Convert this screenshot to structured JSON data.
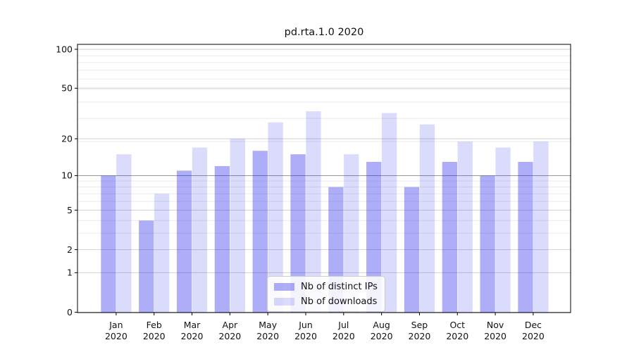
{
  "title": "pd.rta.1.0 2020",
  "chart_data": {
    "type": "bar",
    "title": "pd.rta.1.0 2020",
    "categories": [
      "Jan",
      "Feb",
      "Mar",
      "Apr",
      "May",
      "Jun",
      "Jul",
      "Aug",
      "Sep",
      "Oct",
      "Nov",
      "Dec"
    ],
    "year_label": "2020",
    "series": [
      {
        "name": "Nb of distinct IPs",
        "color": "rgba(30,30,235,0.36)",
        "values": [
          10,
          4,
          11,
          12,
          16,
          15,
          8,
          13,
          8,
          13,
          10,
          13
        ]
      },
      {
        "name": "Nb of downloads",
        "color": "rgba(30,30,235,0.16)",
        "values": [
          15,
          7,
          17,
          20,
          27,
          33,
          15,
          32,
          26,
          19,
          17,
          19
        ]
      }
    ],
    "xlabel": "",
    "ylabel": "",
    "yscale": "log1p",
    "ylim": [
      0,
      110
    ],
    "y_major_ticks": [
      0,
      1,
      2,
      5,
      10,
      20,
      50,
      100
    ],
    "y_minor_ticks": [
      3,
      4,
      6,
      7,
      8,
      9,
      19,
      29,
      39,
      49,
      59,
      69,
      79,
      89
    ],
    "emphasized_gridline": 10,
    "grid": true,
    "legend_position": "lower center",
    "colors": {
      "major_grid": "#d2d2d2",
      "minor_grid": "#ebebeb",
      "emphasized_grid": "#999999",
      "spine": "#000000",
      "text": "#111111",
      "background": "#ffffff"
    }
  }
}
